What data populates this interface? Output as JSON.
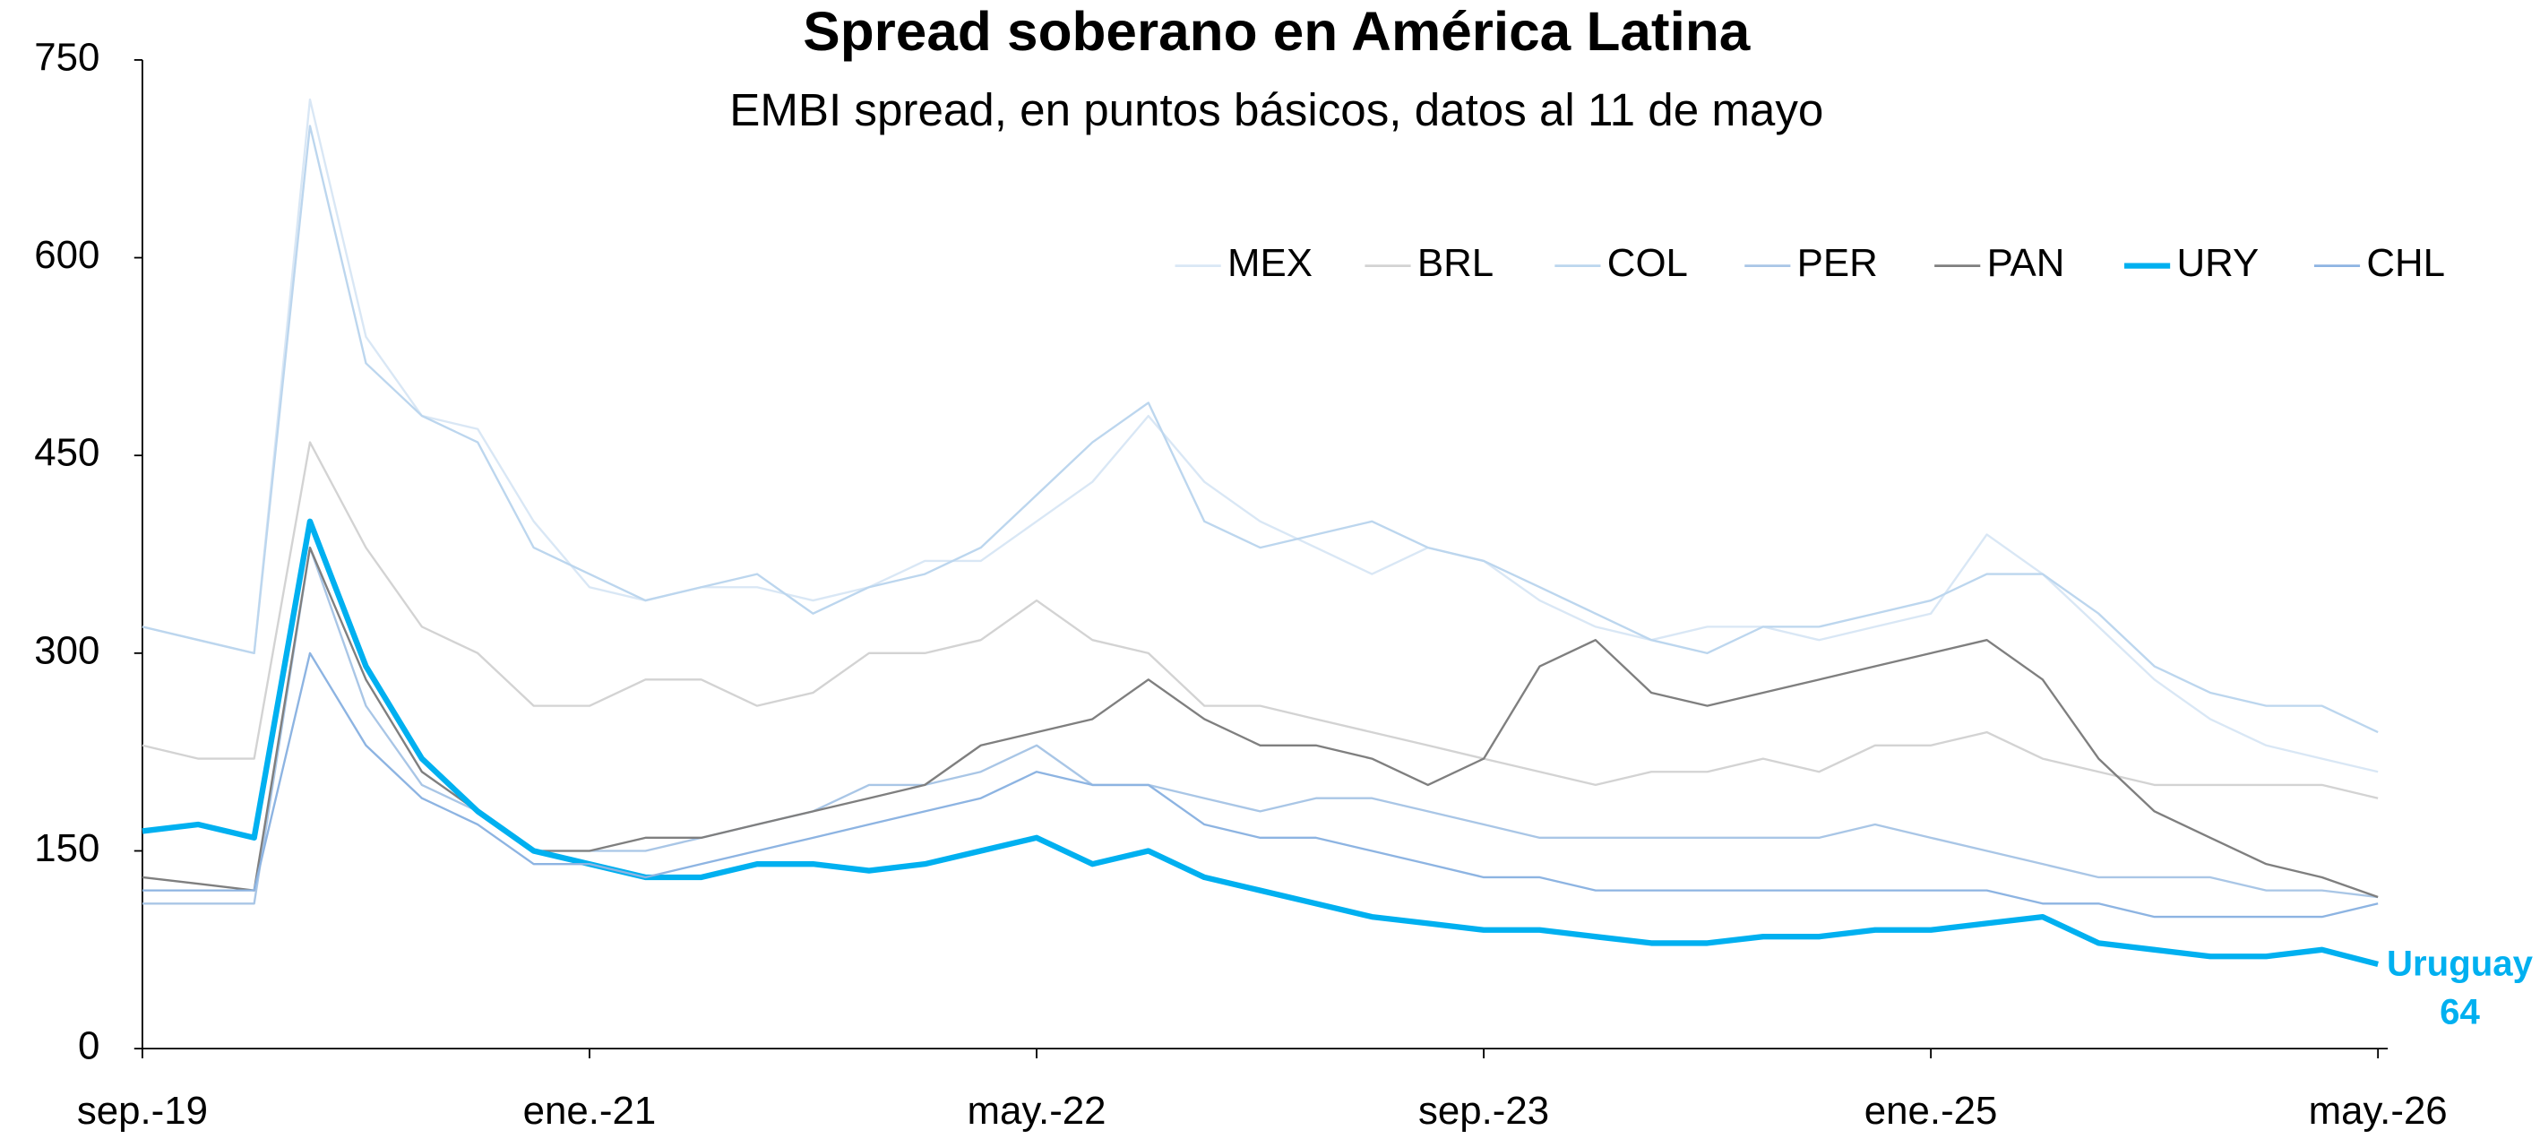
{
  "chart_data": {
    "type": "line",
    "title": "Spread soberano en América Latina",
    "subtitle": "EMBI spread, en puntos básicos, datos al 11 de mayo",
    "annotation": [
      "Uruguay",
      "64"
    ],
    "categories": [
      "sep.-19",
      null,
      null,
      null,
      null,
      null,
      null,
      null,
      "ene.-21",
      null,
      null,
      null,
      null,
      null,
      null,
      null,
      "may.-22",
      null,
      null,
      null,
      null,
      null,
      null,
      null,
      "sep.-23",
      null,
      null,
      null,
      null,
      null,
      null,
      null,
      "ene.-25",
      null,
      null,
      null,
      null,
      null,
      null,
      null,
      "may.-26"
    ],
    "ylim": [
      0,
      750
    ],
    "yticks": [
      0,
      150,
      300,
      450,
      600,
      750
    ],
    "legend": "top-right",
    "series": [
      {
        "name": "MEX",
        "color": "#d9e7f5",
        "values": [
          320,
          310,
          300,
          720,
          540,
          480,
          470,
          400,
          350,
          340,
          350,
          350,
          340,
          350,
          370,
          370,
          400,
          430,
          480,
          430,
          400,
          380,
          360,
          380,
          370,
          340,
          320,
          310,
          320,
          320,
          310,
          320,
          330,
          390,
          360,
          320,
          280,
          250,
          230,
          220,
          210
        ]
      },
      {
        "name": "BRL",
        "color": "#d3d3d3",
        "values": [
          230,
          220,
          220,
          460,
          380,
          320,
          300,
          260,
          260,
          280,
          280,
          260,
          270,
          300,
          300,
          310,
          340,
          310,
          300,
          260,
          260,
          250,
          240,
          230,
          220,
          210,
          200,
          210,
          210,
          220,
          210,
          230,
          230,
          240,
          220,
          210,
          200,
          200,
          200,
          200,
          190
        ]
      },
      {
        "name": "COL",
        "color": "#bcd6ee",
        "values": [
          320,
          310,
          300,
          700,
          520,
          480,
          460,
          380,
          360,
          340,
          350,
          360,
          330,
          350,
          360,
          380,
          420,
          460,
          490,
          400,
          380,
          390,
          400,
          380,
          370,
          350,
          330,
          310,
          300,
          320,
          320,
          330,
          340,
          360,
          360,
          330,
          290,
          270,
          260,
          260,
          240
        ]
      },
      {
        "name": "PER",
        "color": "#a9c6e6",
        "values": [
          110,
          110,
          110,
          380,
          260,
          200,
          180,
          150,
          150,
          150,
          160,
          170,
          180,
          200,
          200,
          210,
          230,
          200,
          200,
          190,
          180,
          190,
          190,
          180,
          170,
          160,
          160,
          160,
          160,
          160,
          160,
          170,
          160,
          150,
          140,
          130,
          130,
          130,
          120,
          120,
          115
        ]
      },
      {
        "name": "PAN",
        "color": "#7f7f7f",
        "values": [
          130,
          125,
          120,
          380,
          280,
          210,
          180,
          150,
          150,
          160,
          160,
          170,
          180,
          190,
          200,
          230,
          240,
          250,
          280,
          250,
          230,
          230,
          220,
          200,
          220,
          290,
          310,
          270,
          260,
          270,
          280,
          290,
          300,
          310,
          280,
          220,
          180,
          160,
          140,
          130,
          115
        ]
      },
      {
        "name": "URY",
        "color": "#00b0f0",
        "values": [
          165,
          170,
          160,
          400,
          290,
          220,
          180,
          150,
          140,
          130,
          130,
          140,
          140,
          135,
          140,
          150,
          160,
          140,
          150,
          130,
          120,
          110,
          100,
          95,
          90,
          90,
          85,
          80,
          80,
          85,
          85,
          90,
          90,
          95,
          100,
          80,
          75,
          70,
          70,
          75,
          64
        ]
      },
      {
        "name": "CHL",
        "color": "#8db4e2",
        "values": [
          120,
          120,
          120,
          300,
          230,
          190,
          170,
          140,
          140,
          130,
          140,
          150,
          160,
          170,
          180,
          190,
          210,
          200,
          200,
          170,
          160,
          160,
          150,
          140,
          130,
          130,
          120,
          120,
          120,
          120,
          120,
          120,
          120,
          120,
          110,
          110,
          100,
          100,
          100,
          100,
          110
        ]
      }
    ]
  }
}
